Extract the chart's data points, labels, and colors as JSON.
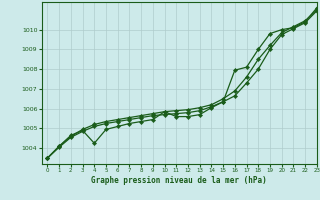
{
  "title": "Graphe pression niveau de la mer (hPa)",
  "background_color": "#cdeaea",
  "grid_color": "#b0cccc",
  "line_color": "#1a5c1a",
  "xlim": [
    -0.5,
    23
  ],
  "ylim": [
    1003.2,
    1011.4
  ],
  "yticks": [
    1004,
    1005,
    1006,
    1007,
    1008,
    1009,
    1010
  ],
  "xticks": [
    0,
    1,
    2,
    3,
    4,
    5,
    6,
    7,
    8,
    9,
    10,
    11,
    12,
    13,
    14,
    15,
    16,
    17,
    18,
    19,
    20,
    21,
    22,
    23
  ],
  "series": {
    "line_jagged": [
      1003.5,
      1004.1,
      1004.65,
      1004.9,
      1004.25,
      1004.95,
      1005.1,
      1005.25,
      1005.35,
      1005.45,
      1005.85,
      1005.6,
      1005.6,
      1005.7,
      1006.05,
      1006.35,
      1007.95,
      1008.1,
      1009.0,
      1009.8,
      1010.0,
      1010.1,
      1010.4,
      1011.1
    ],
    "line_smooth1": [
      1003.5,
      1004.05,
      1004.55,
      1004.85,
      1005.1,
      1005.25,
      1005.35,
      1005.45,
      1005.55,
      1005.65,
      1005.7,
      1005.75,
      1005.8,
      1005.9,
      1006.1,
      1006.35,
      1006.65,
      1007.3,
      1008.0,
      1009.0,
      1009.75,
      1010.05,
      1010.35,
      1010.95
    ],
    "line_smooth2": [
      1003.5,
      1004.1,
      1004.6,
      1004.95,
      1005.2,
      1005.35,
      1005.45,
      1005.55,
      1005.65,
      1005.75,
      1005.85,
      1005.9,
      1005.95,
      1006.05,
      1006.2,
      1006.5,
      1006.9,
      1007.6,
      1008.5,
      1009.2,
      1009.85,
      1010.15,
      1010.45,
      1011.0
    ]
  }
}
